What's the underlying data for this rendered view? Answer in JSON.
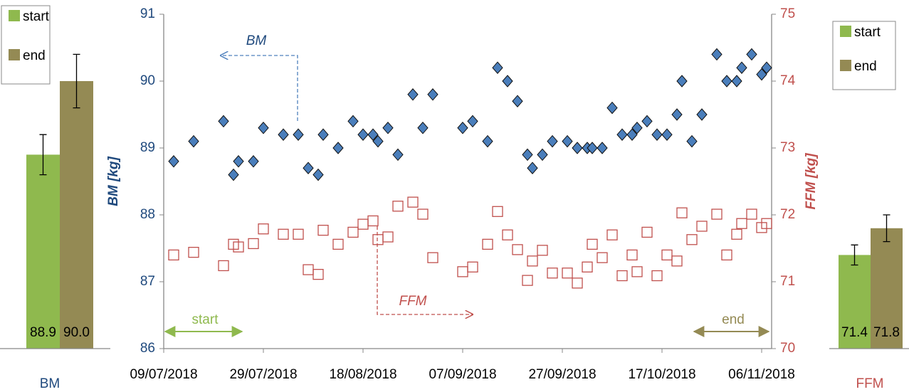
{
  "chart_data": [
    {
      "type": "bar",
      "categories": [
        "BM"
      ],
      "ylim": [
        86,
        91
      ],
      "series": [
        {
          "name": "start",
          "color": "#8fb94e",
          "values": [
            88.9
          ],
          "errors": [
            0.3
          ],
          "value_labels": [
            "88.9"
          ]
        },
        {
          "name": "end",
          "color": "#948a54",
          "values": [
            90.0
          ],
          "errors": [
            0.4
          ],
          "value_labels": [
            "90.0"
          ]
        }
      ]
    },
    {
      "type": "scatter",
      "y_label": "BM [kg]",
      "y2_label": "FFM [kg]",
      "annotations": [
        "start",
        "end"
      ],
      "xlim": [
        "2018-07-09",
        "2018-11-08"
      ],
      "xticks": [
        {
          "value": "2018-07-09",
          "label": "09/07/2018"
        },
        {
          "value": "2018-07-29",
          "label": "29/07/2018"
        },
        {
          "value": "2018-08-18",
          "label": "18/08/2018"
        },
        {
          "value": "2018-09-07",
          "label": "07/09/2018"
        },
        {
          "value": "2018-09-27",
          "label": "27/09/2018"
        },
        {
          "value": "2018-10-17",
          "label": "17/10/2018"
        },
        {
          "value": "2018-11-06",
          "label": "06/11/2018"
        }
      ],
      "ylim": [
        86,
        91
      ],
      "yticks": [
        86,
        87,
        88,
        89,
        90,
        91
      ],
      "y2lim": [
        70,
        75
      ],
      "y2ticks": [
        70,
        71,
        72,
        73,
        74,
        75
      ],
      "x": [
        "2018-07-11",
        "2018-07-15",
        "2018-07-21",
        "2018-07-23",
        "2018-07-24",
        "2018-07-27",
        "2018-07-29",
        "2018-08-02",
        "2018-08-05",
        "2018-08-07",
        "2018-08-09",
        "2018-08-10",
        "2018-08-13",
        "2018-08-16",
        "2018-08-18",
        "2018-08-20",
        "2018-08-21",
        "2018-08-23",
        "2018-08-25",
        "2018-08-28",
        "2018-08-30",
        "2018-09-01",
        "2018-09-07",
        "2018-09-09",
        "2018-09-12",
        "2018-09-14",
        "2018-09-16",
        "2018-09-18",
        "2018-09-20",
        "2018-09-21",
        "2018-09-23",
        "2018-09-25",
        "2018-09-28",
        "2018-09-30",
        "2018-10-02",
        "2018-10-03",
        "2018-10-05",
        "2018-10-07",
        "2018-10-09",
        "2018-10-11",
        "2018-10-12",
        "2018-10-14",
        "2018-10-16",
        "2018-10-18",
        "2018-10-20",
        "2018-10-21",
        "2018-10-23",
        "2018-10-25",
        "2018-10-28",
        "2018-10-30",
        "2018-11-01",
        "2018-11-02",
        "2018-11-04",
        "2018-11-06",
        "2018-11-07"
      ],
      "series": [
        {
          "name": "BM",
          "axis": "y",
          "color": "#4a7ebb",
          "marker": "diamond",
          "values": [
            88.8,
            89.1,
            89.4,
            88.6,
            88.8,
            88.8,
            89.3,
            89.2,
            89.2,
            88.7,
            88.6,
            89.2,
            89.0,
            89.4,
            89.2,
            89.2,
            89.1,
            89.3,
            88.9,
            89.8,
            89.3,
            89.8,
            89.3,
            89.4,
            89.1,
            90.2,
            90.0,
            89.7,
            88.9,
            88.7,
            88.9,
            89.1,
            89.1,
            89.0,
            89.0,
            89.0,
            89.0,
            89.6,
            89.2,
            89.2,
            89.3,
            89.4,
            89.2,
            89.2,
            89.5,
            90.0,
            89.1,
            89.5,
            90.4,
            90.0,
            90.0,
            90.2,
            90.4,
            90.1,
            90.2
          ]
        },
        {
          "name": "FFM",
          "axis": "y2",
          "color": "#c0504d",
          "marker": "open-square",
          "values": [
            71.4,
            71.44,
            71.24,
            71.56,
            71.52,
            71.57,
            71.79,
            71.71,
            71.71,
            71.18,
            71.11,
            71.77,
            71.56,
            71.74,
            71.86,
            71.91,
            71.63,
            71.67,
            72.13,
            72.19,
            72.01,
            71.36,
            71.15,
            71.22,
            71.56,
            72.05,
            71.7,
            71.48,
            71.02,
            71.31,
            71.47,
            71.13,
            71.13,
            70.98,
            71.22,
            71.56,
            71.36,
            71.7,
            71.09,
            71.4,
            71.15,
            71.74,
            71.09,
            71.4,
            71.31,
            72.03,
            71.63,
            71.83,
            72.01,
            71.4,
            71.71,
            71.87,
            72.01,
            71.81,
            71.87
          ]
        }
      ]
    },
    {
      "type": "bar",
      "categories": [
        "FFM"
      ],
      "ylim": [
        70,
        75
      ],
      "series": [
        {
          "name": "start",
          "color": "#8fb94e",
          "values": [
            71.4
          ],
          "errors": [
            0.15
          ],
          "value_labels": [
            "71.4"
          ]
        },
        {
          "name": "end",
          "color": "#948a54",
          "values": [
            71.8
          ],
          "errors": [
            0.2
          ],
          "value_labels": [
            "71.8"
          ]
        }
      ]
    }
  ]
}
